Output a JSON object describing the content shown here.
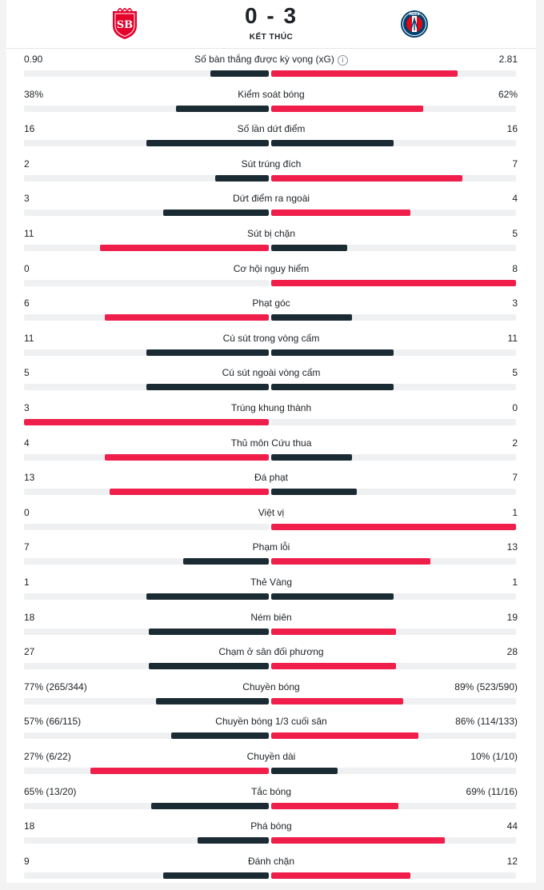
{
  "match": {
    "score": "0 - 3",
    "status": "KẾT THÚC",
    "home_crest": "stade-brestois-crest",
    "away_crest": "psg-crest"
  },
  "colors": {
    "home_bar_lead": "#ef1e4a",
    "away_bar_lead": "#ef1e4a",
    "bar_trail": "#1b2b33",
    "track": "#eef0f2"
  },
  "stats": [
    {
      "label": "Số bàn thắng được kỳ vọng (xG)",
      "home": "0.90",
      "away": "2.81",
      "home_ratio": 0.24,
      "away_ratio": 0.76,
      "info": true
    },
    {
      "label": "Kiểm soát bóng",
      "home": "38%",
      "away": "62%",
      "home_ratio": 0.38,
      "away_ratio": 0.62
    },
    {
      "label": "Số lần dứt điểm",
      "home": "16",
      "away": "16",
      "home_ratio": 0.5,
      "away_ratio": 0.5
    },
    {
      "label": "Sút trúng đích",
      "home": "2",
      "away": "7",
      "home_ratio": 0.22,
      "away_ratio": 0.78
    },
    {
      "label": "Dứt điểm ra ngoài",
      "home": "3",
      "away": "4",
      "home_ratio": 0.43,
      "away_ratio": 0.57
    },
    {
      "label": "Sút bị chặn",
      "home": "11",
      "away": "5",
      "home_ratio": 0.69,
      "away_ratio": 0.31
    },
    {
      "label": "Cơ hội nguy hiểm",
      "home": "0",
      "away": "8",
      "home_ratio": 0.0,
      "away_ratio": 1.0
    },
    {
      "label": "Phạt góc",
      "home": "6",
      "away": "3",
      "home_ratio": 0.67,
      "away_ratio": 0.33
    },
    {
      "label": "Cú sút trong vòng cấm",
      "home": "11",
      "away": "11",
      "home_ratio": 0.5,
      "away_ratio": 0.5
    },
    {
      "label": "Cú sút ngoài vòng cấm",
      "home": "5",
      "away": "5",
      "home_ratio": 0.5,
      "away_ratio": 0.5
    },
    {
      "label": "Trúng khung thành",
      "home": "3",
      "away": "0",
      "home_ratio": 1.0,
      "away_ratio": 0.0
    },
    {
      "label": "Thủ môn Cứu thua",
      "home": "4",
      "away": "2",
      "home_ratio": 0.67,
      "away_ratio": 0.33
    },
    {
      "label": "Đá phạt",
      "home": "13",
      "away": "7",
      "home_ratio": 0.65,
      "away_ratio": 0.35
    },
    {
      "label": "Việt vị",
      "home": "0",
      "away": "1",
      "home_ratio": 0.0,
      "away_ratio": 1.0
    },
    {
      "label": "Phạm lỗi",
      "home": "7",
      "away": "13",
      "home_ratio": 0.35,
      "away_ratio": 0.65
    },
    {
      "label": "Thẻ Vàng",
      "home": "1",
      "away": "1",
      "home_ratio": 0.5,
      "away_ratio": 0.5
    },
    {
      "label": "Ném biên",
      "home": "18",
      "away": "19",
      "home_ratio": 0.49,
      "away_ratio": 0.51
    },
    {
      "label": "Chạm ở sân đối phương",
      "home": "27",
      "away": "28",
      "home_ratio": 0.49,
      "away_ratio": 0.51
    },
    {
      "label": "Chuyền bóng",
      "home": "77% (265/344)",
      "away": "89% (523/590)",
      "home_ratio": 0.46,
      "away_ratio": 0.54
    },
    {
      "label": "Chuyền bóng 1/3 cuối sân",
      "home": "57% (66/115)",
      "away": "86% (114/133)",
      "home_ratio": 0.4,
      "away_ratio": 0.6
    },
    {
      "label": "Chuyền dài",
      "home": "27% (6/22)",
      "away": "10% (1/10)",
      "home_ratio": 0.73,
      "away_ratio": 0.27
    },
    {
      "label": "Tắc bóng",
      "home": "65% (13/20)",
      "away": "69% (11/16)",
      "home_ratio": 0.48,
      "away_ratio": 0.52
    },
    {
      "label": "Phá bóng",
      "home": "18",
      "away": "44",
      "home_ratio": 0.29,
      "away_ratio": 0.71
    },
    {
      "label": "Đánh chặn",
      "home": "9",
      "away": "12",
      "home_ratio": 0.43,
      "away_ratio": 0.57
    }
  ]
}
